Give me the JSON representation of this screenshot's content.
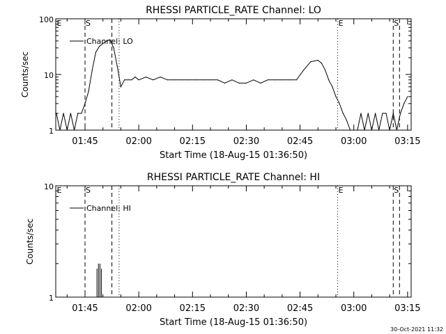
{
  "footer_timestamp": "30-Oct-2021 11:32",
  "chart_data": [
    {
      "type": "line",
      "title": "RHESSI PARTICLE_RATE Channel: LO",
      "xlabel": "Start Time (18-Aug-15 01:36:50)",
      "ylabel": "Counts/sec",
      "yscale": "log",
      "ylim": [
        1,
        100
      ],
      "xlim": [
        "01:36:50",
        "03:16:00"
      ],
      "xticks": [
        "01:45",
        "02:00",
        "02:15",
        "02:30",
        "02:45",
        "03:00",
        "03:15"
      ],
      "yticks": [
        "1",
        "10",
        "100"
      ],
      "legend": "top-left",
      "series": [
        {
          "name": "Channel: LO",
          "x": [
            "01:37",
            "01:38",
            "01:39",
            "01:40",
            "01:41",
            "01:42",
            "01:43",
            "01:44",
            "01:45",
            "01:46",
            "01:47",
            "01:48",
            "01:49",
            "01:50",
            "01:51",
            "01:52",
            "01:53",
            "01:54",
            "01:55",
            "01:56",
            "01:57",
            "01:58",
            "01:59",
            "02:00",
            "02:02",
            "02:04",
            "02:06",
            "02:08",
            "02:10",
            "02:12",
            "02:14",
            "02:16",
            "02:18",
            "02:20",
            "02:22",
            "02:24",
            "02:26",
            "02:28",
            "02:30",
            "02:32",
            "02:34",
            "02:36",
            "02:38",
            "02:40",
            "02:42",
            "02:44",
            "02:46",
            "02:48",
            "02:50",
            "02:51",
            "02:52",
            "02:53",
            "02:54",
            "02:55",
            "02:56",
            "02:57",
            "02:58",
            "02:59",
            "03:00",
            "03:01",
            "03:02",
            "03:03",
            "03:04",
            "03:05",
            "03:06",
            "03:07",
            "03:08",
            "03:09",
            "03:10",
            "03:11",
            "03:12",
            "03:13",
            "03:14",
            "03:15"
          ],
          "y": [
            2,
            1,
            2,
            1,
            2,
            1,
            2,
            2,
            3,
            5,
            12,
            25,
            32,
            36,
            40,
            42,
            30,
            14,
            6,
            8,
            8,
            8,
            9,
            8,
            9,
            8,
            9,
            8,
            8,
            8,
            8,
            8,
            8,
            8,
            8,
            7,
            8,
            7,
            7,
            8,
            7,
            8,
            8,
            8,
            8,
            8,
            12,
            17,
            18,
            16,
            12,
            8,
            6,
            4,
            3,
            2,
            1.5,
            1,
            1,
            1,
            2,
            1,
            2,
            1,
            2,
            1,
            2,
            2,
            1,
            2,
            1,
            2,
            3,
            4
          ]
        }
      ],
      "markers": [
        {
          "label": "E",
          "time": "01:36:50",
          "style": "dotted"
        },
        {
          "label": "S",
          "time": "01:45:00",
          "style": "dashed"
        },
        {
          "label": "",
          "time": "01:52:30",
          "style": "dashed"
        },
        {
          "label": "",
          "time": "01:54:30",
          "style": "dotted"
        },
        {
          "label": "E",
          "time": "02:55:30",
          "style": "dotted"
        },
        {
          "label": "S",
          "time": "03:11:00",
          "style": "dashed"
        },
        {
          "label": "",
          "time": "03:12:45",
          "style": "dashed"
        }
      ]
    },
    {
      "type": "line",
      "title": "RHESSI PARTICLE_RATE Channel: HI",
      "xlabel": "Start Time (18-Aug-15 01:36:50)",
      "ylabel": "Counts/sec",
      "yscale": "log",
      "ylim": [
        1,
        10
      ],
      "xlim": [
        "01:36:50",
        "03:16:00"
      ],
      "xticks": [
        "01:45",
        "02:00",
        "02:15",
        "02:30",
        "02:45",
        "03:00",
        "03:15"
      ],
      "yticks": [
        "1",
        "10"
      ],
      "legend": "top-left",
      "series": [
        {
          "name": "Channel: HI",
          "spikes": [
            {
              "time": "01:48:20",
              "value": 1.8
            },
            {
              "time": "01:48:45",
              "value": 2
            },
            {
              "time": "01:49:10",
              "value": 2
            },
            {
              "time": "01:49:35",
              "value": 1.8
            }
          ]
        }
      ],
      "markers": [
        {
          "label": "E",
          "time": "01:36:50",
          "style": "dotted"
        },
        {
          "label": "S",
          "time": "01:45:00",
          "style": "dashed"
        },
        {
          "label": "",
          "time": "01:52:30",
          "style": "dashed"
        },
        {
          "label": "",
          "time": "01:54:30",
          "style": "dotted"
        },
        {
          "label": "E",
          "time": "02:55:30",
          "style": "dotted"
        },
        {
          "label": "S",
          "time": "03:11:00",
          "style": "dashed"
        },
        {
          "label": "",
          "time": "03:12:45",
          "style": "dashed"
        }
      ]
    }
  ]
}
